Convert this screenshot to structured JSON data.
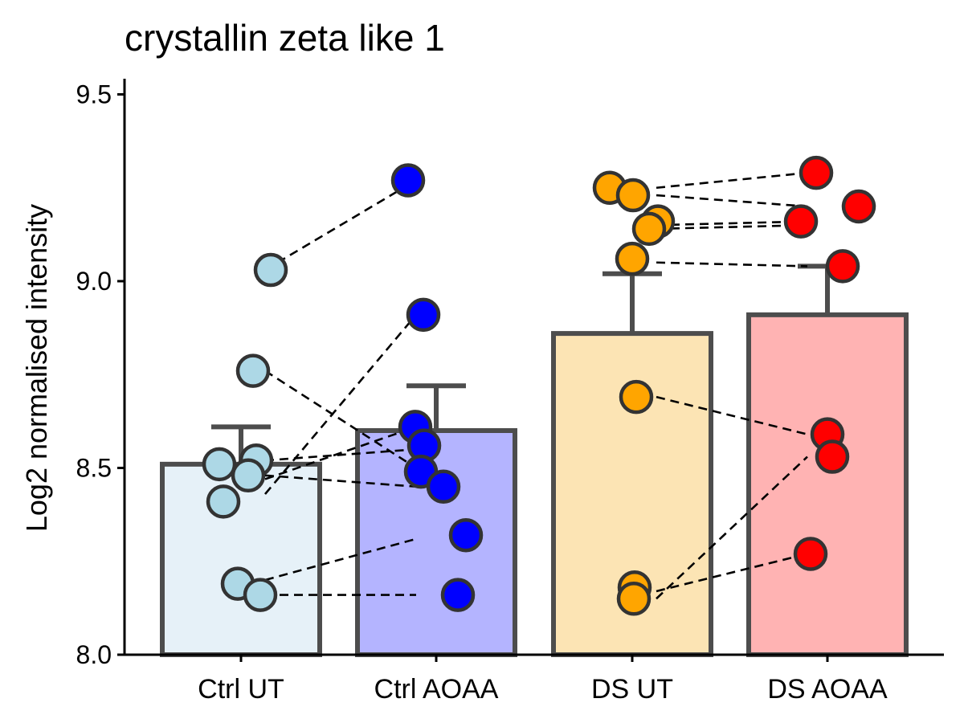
{
  "chart_data": {
    "type": "bar",
    "title": "crystallin zeta like 1",
    "xlabel": "",
    "ylabel": "Log2 normalised intensity",
    "ylim": [
      8.0,
      9.55
    ],
    "yticks": [
      "8.0",
      "8.5",
      "9.0",
      "9.5"
    ],
    "grid": false,
    "categories": [
      "Ctrl UT",
      "Ctrl AOAA",
      "DS UT",
      "DS AOAA"
    ],
    "values": [
      8.51,
      8.6,
      8.86,
      8.91
    ],
    "error_upper": [
      8.61,
      8.72,
      9.02,
      9.04
    ],
    "bar_colors": [
      "#e6f1f8",
      "#b4b4ff",
      "#fce4b4",
      "#ffb3b3"
    ],
    "point_colors": [
      "#add8e6",
      "#0000ff",
      "#ffa500",
      "#ff0000"
    ],
    "points": [
      [
        9.03,
        8.76,
        8.52,
        8.51,
        8.48,
        8.41,
        8.19,
        8.16
      ],
      [
        9.27,
        8.91,
        8.61,
        8.56,
        8.49,
        8.45,
        8.32,
        8.16
      ],
      [
        9.25,
        9.23,
        9.16,
        9.14,
        9.06,
        8.69,
        8.18,
        8.15
      ],
      [
        9.29,
        9.2,
        9.16,
        9.04,
        8.59,
        8.53,
        8.27
      ]
    ],
    "pairs": [
      {
        "from": [
          0,
          9.03
        ],
        "to": [
          1,
          9.27
        ]
      },
      {
        "from": [
          0,
          8.76
        ],
        "to": [
          1,
          8.5
        ]
      },
      {
        "from": [
          0,
          8.43
        ],
        "to": [
          1,
          8.91
        ]
      },
      {
        "from": [
          0,
          8.52
        ],
        "to": [
          1,
          8.55
        ]
      },
      {
        "from": [
          0,
          8.47
        ],
        "to": [
          1,
          8.61
        ]
      },
      {
        "from": [
          0,
          8.48
        ],
        "to": [
          1,
          8.45
        ]
      },
      {
        "from": [
          0,
          8.2
        ],
        "to": [
          1,
          8.31
        ]
      },
      {
        "from": [
          0,
          8.16
        ],
        "to": [
          1,
          8.16
        ]
      },
      {
        "from": [
          2,
          9.25
        ],
        "to": [
          3,
          9.29
        ]
      },
      {
        "from": [
          2,
          9.23
        ],
        "to": [
          3,
          9.2
        ]
      },
      {
        "from": [
          2,
          9.15
        ],
        "to": [
          3,
          9.16
        ]
      },
      {
        "from": [
          2,
          9.14
        ],
        "to": [
          3,
          9.15
        ]
      },
      {
        "from": [
          2,
          9.05
        ],
        "to": [
          3,
          9.04
        ]
      },
      {
        "from": [
          2,
          8.69
        ],
        "to": [
          3,
          8.59
        ]
      },
      {
        "from": [
          2,
          8.15
        ],
        "to": [
          3,
          8.53
        ]
      },
      {
        "from": [
          2,
          8.17
        ],
        "to": [
          3,
          8.27
        ]
      }
    ]
  }
}
